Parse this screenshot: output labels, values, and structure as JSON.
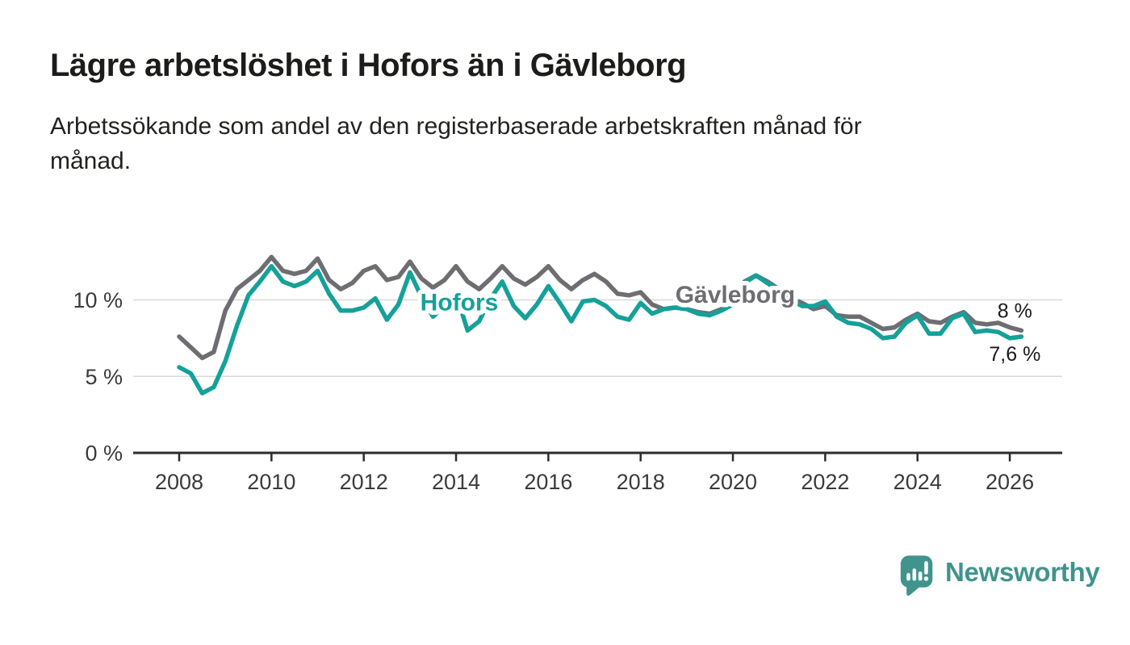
{
  "page": {
    "background": "#ffffff"
  },
  "header": {
    "title": "Lägre arbetslöshet i Hofors än i Gävleborg",
    "subtitle_lines": [
      "Arbetssökande som andel av den registerbaserade arbetskraften månad för",
      "månad."
    ]
  },
  "chart_data": {
    "type": "line",
    "x_unit": "year (monthly share of registered labour force, read quarterly)",
    "x": [
      2008.0,
      2008.25,
      2008.5,
      2008.75,
      2009.0,
      2009.25,
      2009.5,
      2009.75,
      2010.0,
      2010.25,
      2010.5,
      2010.75,
      2011.0,
      2011.25,
      2011.5,
      2011.75,
      2012.0,
      2012.25,
      2012.5,
      2012.75,
      2013.0,
      2013.25,
      2013.5,
      2013.75,
      2014.0,
      2014.25,
      2014.5,
      2014.75,
      2015.0,
      2015.25,
      2015.5,
      2015.75,
      2016.0,
      2016.25,
      2016.5,
      2016.75,
      2017.0,
      2017.25,
      2017.5,
      2017.75,
      2018.0,
      2018.25,
      2018.5,
      2018.75,
      2019.0,
      2019.25,
      2019.5,
      2019.75,
      2020.0,
      2020.25,
      2020.5,
      2020.75,
      2021.0,
      2021.25,
      2021.5,
      2021.75,
      2022.0,
      2022.25,
      2022.5,
      2022.75,
      2023.0,
      2023.25,
      2023.5,
      2023.75,
      2024.0,
      2024.25,
      2024.5,
      2024.75,
      2025.0,
      2025.25,
      2025.5,
      2025.75,
      2026.0,
      2026.25
    ],
    "series": [
      {
        "name": "Gävleborg",
        "color": "#6d6d72",
        "values": [
          7.6,
          6.9,
          6.2,
          6.6,
          9.3,
          10.7,
          11.3,
          11.9,
          12.8,
          11.9,
          11.7,
          11.9,
          12.7,
          11.3,
          10.7,
          11.1,
          11.9,
          12.2,
          11.3,
          11.5,
          12.5,
          11.4,
          10.8,
          11.3,
          12.2,
          11.2,
          10.7,
          11.4,
          12.2,
          11.4,
          11.0,
          11.5,
          12.2,
          11.3,
          10.7,
          11.3,
          11.7,
          11.2,
          10.4,
          10.3,
          10.5,
          9.7,
          9.4,
          9.5,
          9.4,
          9.2,
          9.1,
          9.4,
          9.9,
          11.2,
          11.6,
          11.2,
          10.7,
          10.1,
          9.8,
          9.4,
          9.6,
          9.0,
          8.9,
          8.9,
          8.5,
          8.1,
          8.2,
          8.7,
          9.1,
          8.6,
          8.5,
          8.9,
          9.2,
          8.5,
          8.4,
          8.5,
          8.2,
          8.0
        ],
        "label": {
          "text": "Gävleborg",
          "x": 2020.05,
          "y": 10.35
        },
        "end_label": {
          "text": "8 %",
          "position": "above"
        }
      },
      {
        "name": "Hofors",
        "color": "#14a199",
        "values": [
          5.6,
          5.2,
          3.9,
          4.3,
          6.0,
          8.3,
          10.3,
          11.2,
          12.2,
          11.2,
          10.9,
          11.2,
          11.9,
          10.4,
          9.3,
          9.3,
          9.5,
          10.1,
          8.7,
          9.7,
          11.8,
          10.2,
          8.9,
          9.6,
          10.4,
          8.0,
          8.6,
          10.1,
          11.2,
          9.6,
          8.8,
          9.7,
          10.9,
          9.8,
          8.6,
          9.9,
          10.0,
          9.6,
          8.9,
          8.7,
          9.8,
          9.1,
          9.4,
          9.5,
          9.4,
          9.1,
          9.0,
          9.3,
          9.7,
          11.1,
          11.6,
          11.1,
          10.6,
          10.0,
          9.6,
          9.6,
          9.9,
          8.9,
          8.5,
          8.4,
          8.1,
          7.5,
          7.6,
          8.5,
          9.0,
          7.8,
          7.8,
          8.8,
          9.1,
          7.9,
          8.0,
          7.9,
          7.5,
          7.6
        ],
        "label": {
          "text": "Hofors",
          "x": 2014.07,
          "y": 9.85
        },
        "end_label": {
          "text": "7,6 %",
          "position": "below"
        }
      }
    ],
    "xticks": [
      2008,
      2010,
      2012,
      2014,
      2016,
      2018,
      2020,
      2022,
      2024,
      2026
    ],
    "xtick_labels": [
      "2008",
      "2010",
      "2012",
      "2014",
      "2016",
      "2018",
      "2020",
      "2022",
      "2024",
      "2026"
    ],
    "yticks": [
      0,
      5,
      10
    ],
    "ytick_labels": [
      "0 %",
      "5 %",
      "10 %"
    ],
    "ylim": [
      0,
      13.8
    ],
    "xlim": [
      2007.0,
      2027.1
    ],
    "grid": "horizontal",
    "legend": "inline-series-labels"
  },
  "colors": {
    "grid": "#dadada",
    "axis": "#2e2b2c",
    "tick_text": "#3b3b3b",
    "value_text": "#1a1a1a"
  },
  "footer": {
    "brand_name": "Newsworthy",
    "brand_color": "#3f948d",
    "icon": "speech-bubble-bar-chart"
  }
}
